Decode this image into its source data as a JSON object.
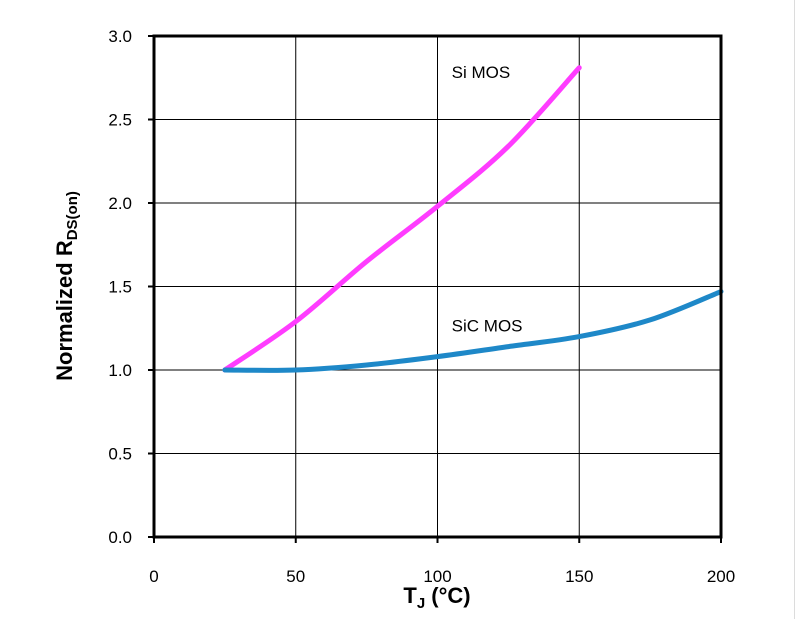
{
  "chart_data": {
    "type": "line",
    "xlabel_main": "T",
    "xlabel_sub": "J",
    "xlabel_unit": " (°C)",
    "ylabel_main": "Normalized R",
    "ylabel_sub": "DS(on)",
    "xlim": [
      0,
      200
    ],
    "ylim": [
      0,
      3.0
    ],
    "x_ticks": [
      0,
      50,
      100,
      150,
      200
    ],
    "x_tick_labels": [
      "0",
      "50",
      "100",
      "150",
      "200"
    ],
    "y_ticks": [
      0,
      0.5,
      1.0,
      1.5,
      2.0,
      2.5,
      3.0
    ],
    "y_tick_labels": [
      "0.0",
      "0.5",
      "1.0",
      "1.5",
      "2.0",
      "2.5",
      "3.0"
    ],
    "grid": true,
    "series": [
      {
        "name": "Si MOS",
        "color": "#ff3cff",
        "label_at": [
          105,
          2.75
        ],
        "x": [
          25,
          50,
          75,
          100,
          125,
          150
        ],
        "y": [
          1.0,
          1.29,
          1.65,
          1.98,
          2.34,
          2.81
        ]
      },
      {
        "name": "SiC MOS",
        "color": "#1e88c8",
        "label_at": [
          105,
          1.23
        ],
        "x": [
          25,
          50,
          75,
          100,
          125,
          150,
          175,
          200
        ],
        "y": [
          1.0,
          1.0,
          1.03,
          1.08,
          1.14,
          1.2,
          1.3,
          1.47
        ]
      }
    ]
  }
}
